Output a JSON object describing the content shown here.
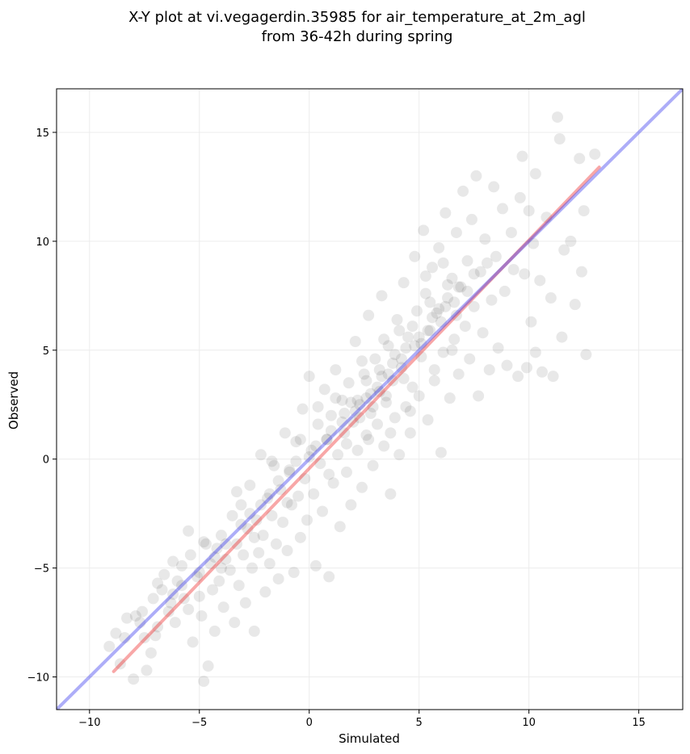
{
  "chart_data": {
    "type": "scatter",
    "title_line1": "X-Y plot at vi.vegagerdin.35985 for air_temperature_at_2m_agl",
    "title_line2": "from 36-42h during spring",
    "xlabel": "Simulated",
    "ylabel": "Observed",
    "xlim": [
      -11.5,
      17
    ],
    "ylim": [
      -11.5,
      17
    ],
    "xticks": [
      -10,
      -5,
      0,
      5,
      10,
      15
    ],
    "yticks": [
      -10,
      -5,
      0,
      5,
      10,
      15
    ],
    "grid": true,
    "point_color": "#000000",
    "point_alpha": 0.09,
    "regression_color": "#ee2222",
    "identity_color": "#3333ee",
    "regression_line": {
      "x": [
        -8.9,
        13.2
      ],
      "y": [
        -9.75,
        13.4
      ]
    },
    "identity_line": {
      "x": [
        -11.5,
        17
      ],
      "y": [
        -11.5,
        17
      ]
    },
    "series": [
      {
        "points": [
          [
            -9.1,
            -8.6
          ],
          [
            -8.8,
            -8.0
          ],
          [
            -8.6,
            -9.4
          ],
          [
            -8.4,
            -8.2
          ],
          [
            -8.3,
            -7.3
          ],
          [
            -8.0,
            -10.1
          ],
          [
            -7.9,
            -7.2
          ],
          [
            -7.6,
            -7.0
          ],
          [
            -7.5,
            -8.2
          ],
          [
            -7.4,
            -9.7
          ],
          [
            -7.2,
            -8.9
          ],
          [
            -7.1,
            -6.4
          ],
          [
            -6.9,
            -7.7
          ],
          [
            -6.7,
            -6.0
          ],
          [
            -6.6,
            -5.3
          ],
          [
            -6.4,
            -7.0
          ],
          [
            -6.2,
            -6.2
          ],
          [
            -6.1,
            -7.5
          ],
          [
            -6.0,
            -5.6
          ],
          [
            -5.8,
            -4.9
          ],
          [
            -5.7,
            -6.4
          ],
          [
            -5.5,
            -3.3
          ],
          [
            -5.4,
            -4.4
          ],
          [
            -5.3,
            -8.4
          ],
          [
            -5.1,
            -5.4
          ],
          [
            -5.0,
            -6.3
          ],
          [
            -4.9,
            -7.2
          ],
          [
            -4.8,
            -10.2
          ],
          [
            -4.7,
            -3.9
          ],
          [
            -4.6,
            -9.5
          ],
          [
            -4.5,
            -4.8
          ],
          [
            -4.4,
            -6.0
          ],
          [
            -4.3,
            -7.9
          ],
          [
            -4.2,
            -4.1
          ],
          [
            -4.1,
            -5.6
          ],
          [
            -4.0,
            -3.5
          ],
          [
            -3.9,
            -6.8
          ],
          [
            -3.8,
            -4.6
          ],
          [
            -3.6,
            -5.1
          ],
          [
            -3.5,
            -2.6
          ],
          [
            -3.4,
            -7.5
          ],
          [
            -3.3,
            -3.9
          ],
          [
            -3.2,
            -5.8
          ],
          [
            -3.1,
            -2.1
          ],
          [
            -3.0,
            -4.4
          ],
          [
            -2.9,
            -6.6
          ],
          [
            -2.8,
            -3.2
          ],
          [
            -2.7,
            -1.2
          ],
          [
            -2.6,
            -5.0
          ],
          [
            -2.5,
            -7.9
          ],
          [
            -2.4,
            -2.8
          ],
          [
            -2.3,
            -4.3
          ],
          [
            -2.2,
            0.2
          ],
          [
            -2.1,
            -3.5
          ],
          [
            -2.0,
            -6.1
          ],
          [
            -1.9,
            -1.8
          ],
          [
            -1.8,
            -4.8
          ],
          [
            -1.7,
            -2.6
          ],
          [
            -1.6,
            -0.3
          ],
          [
            -1.5,
            -3.9
          ],
          [
            -1.4,
            -5.5
          ],
          [
            -1.3,
            -1.4
          ],
          [
            -1.2,
            -2.9
          ],
          [
            -1.1,
            1.2
          ],
          [
            -1.0,
            -4.2
          ],
          [
            -0.9,
            -0.5
          ],
          [
            -0.8,
            -2.1
          ],
          [
            -0.7,
            -5.2
          ],
          [
            -0.6,
            0.8
          ],
          [
            -0.5,
            -1.7
          ],
          [
            -0.4,
            -3.6
          ],
          [
            -0.3,
            2.3
          ],
          [
            -0.2,
            -0.9
          ],
          [
            -0.1,
            -2.8
          ],
          [
            0.0,
            3.8
          ],
          [
            0.1,
            0.4
          ],
          [
            0.2,
            -1.6
          ],
          [
            0.3,
            -4.9
          ],
          [
            0.4,
            1.6
          ],
          [
            0.5,
            -0.2
          ],
          [
            0.6,
            -2.4
          ],
          [
            0.7,
            3.2
          ],
          [
            0.8,
            0.9
          ],
          [
            0.9,
            -5.4
          ],
          [
            1.0,
            2.0
          ],
          [
            1.1,
            -1.1
          ],
          [
            1.2,
            4.1
          ],
          [
            1.3,
            0.2
          ],
          [
            1.4,
            -3.1
          ],
          [
            1.5,
            2.7
          ],
          [
            1.6,
            1.2
          ],
          [
            1.7,
            -0.6
          ],
          [
            1.8,
            3.5
          ],
          [
            1.9,
            -2.1
          ],
          [
            2.0,
            1.7
          ],
          [
            2.1,
            5.4
          ],
          [
            2.2,
            0.4
          ],
          [
            2.3,
            2.5
          ],
          [
            2.4,
            -1.3
          ],
          [
            2.5,
            3.9
          ],
          [
            2.6,
            1.1
          ],
          [
            2.7,
            6.6
          ],
          [
            2.8,
            2.1
          ],
          [
            2.9,
            -0.3
          ],
          [
            3.0,
            4.6
          ],
          [
            3.1,
            1.6
          ],
          [
            3.2,
            3.1
          ],
          [
            3.3,
            7.5
          ],
          [
            3.4,
            0.6
          ],
          [
            3.5,
            2.6
          ],
          [
            3.6,
            5.2
          ],
          [
            3.7,
            -1.6
          ],
          [
            3.8,
            3.6
          ],
          [
            3.9,
            1.9
          ],
          [
            4.0,
            6.4
          ],
          [
            4.1,
            0.2
          ],
          [
            4.2,
            4.2
          ],
          [
            4.3,
            8.1
          ],
          [
            4.4,
            2.4
          ],
          [
            4.5,
            5.6
          ],
          [
            4.6,
            1.2
          ],
          [
            4.7,
            3.3
          ],
          [
            4.8,
            9.3
          ],
          [
            4.9,
            6.8
          ],
          [
            5.0,
            2.9
          ],
          [
            5.1,
            4.7
          ],
          [
            5.2,
            10.5
          ],
          [
            5.3,
            7.6
          ],
          [
            5.4,
            1.8
          ],
          [
            5.5,
            5.9
          ],
          [
            5.6,
            8.8
          ],
          [
            5.7,
            3.6
          ],
          [
            5.8,
            6.7
          ],
          [
            5.9,
            9.7
          ],
          [
            6.0,
            0.3
          ],
          [
            6.1,
            4.9
          ],
          [
            6.2,
            11.3
          ],
          [
            6.3,
            7.4
          ],
          [
            6.4,
            2.8
          ],
          [
            6.5,
            8.3
          ],
          [
            6.6,
            5.5
          ],
          [
            6.7,
            10.4
          ],
          [
            6.8,
            3.9
          ],
          [
            6.9,
            7.9
          ],
          [
            7.0,
            12.3
          ],
          [
            7.1,
            6.1
          ],
          [
            7.2,
            9.1
          ],
          [
            7.3,
            4.6
          ],
          [
            7.4,
            11.0
          ],
          [
            7.5,
            7.0
          ],
          [
            7.6,
            13.0
          ],
          [
            7.7,
            2.9
          ],
          [
            7.8,
            8.6
          ],
          [
            7.9,
            5.8
          ],
          [
            8.0,
            10.1
          ],
          [
            8.2,
            4.1
          ],
          [
            8.3,
            7.3
          ],
          [
            8.4,
            12.5
          ],
          [
            8.5,
            9.3
          ],
          [
            8.6,
            5.1
          ],
          [
            8.8,
            11.5
          ],
          [
            8.9,
            7.7
          ],
          [
            9.0,
            4.3
          ],
          [
            9.2,
            10.4
          ],
          [
            9.3,
            8.7
          ],
          [
            9.5,
            3.8
          ],
          [
            9.6,
            12.0
          ],
          [
            9.7,
            13.9
          ],
          [
            9.8,
            8.5
          ],
          [
            9.9,
            4.2
          ],
          [
            10.0,
            11.4
          ],
          [
            10.1,
            6.3
          ],
          [
            10.2,
            9.9
          ],
          [
            10.3,
            13.1
          ],
          [
            10.3,
            4.9
          ],
          [
            10.5,
            8.2
          ],
          [
            10.6,
            4.0
          ],
          [
            10.8,
            11.1
          ],
          [
            11.0,
            7.4
          ],
          [
            11.1,
            3.8
          ],
          [
            11.3,
            15.7
          ],
          [
            11.4,
            14.7
          ],
          [
            11.5,
            5.6
          ],
          [
            11.6,
            9.6
          ],
          [
            11.9,
            10.0
          ],
          [
            12.1,
            7.1
          ],
          [
            12.3,
            13.8
          ],
          [
            12.4,
            8.6
          ],
          [
            12.5,
            11.4
          ],
          [
            12.6,
            4.8
          ],
          [
            13.0,
            14.0
          ],
          [
            -6.9,
            -5.7
          ],
          [
            -5.8,
            -5.8
          ],
          [
            -4.3,
            -4.5
          ],
          [
            -3.1,
            -3.0
          ],
          [
            -2.2,
            -2.1
          ],
          [
            -1.4,
            -1.0
          ],
          [
            -0.6,
            -0.1
          ],
          [
            0.3,
            0.6
          ],
          [
            1.0,
            1.3
          ],
          [
            1.6,
            2.1
          ],
          [
            2.2,
            2.7
          ],
          [
            2.8,
            3.0
          ],
          [
            3.3,
            3.8
          ],
          [
            3.8,
            4.4
          ],
          [
            4.4,
            5.1
          ],
          [
            5.0,
            5.6
          ],
          [
            5.6,
            6.5
          ],
          [
            6.2,
            7.0
          ],
          [
            6.8,
            7.9
          ],
          [
            7.5,
            8.5
          ],
          [
            8.1,
            9.0
          ],
          [
            -7.7,
            -7.5
          ],
          [
            -6.3,
            -6.6
          ],
          [
            -5.0,
            -5.2
          ],
          [
            -3.8,
            -3.9
          ],
          [
            -2.7,
            -2.5
          ],
          [
            -1.8,
            -1.6
          ],
          [
            -0.9,
            -0.6
          ],
          [
            0.0,
            0.1
          ],
          [
            0.8,
            0.9
          ],
          [
            1.5,
            1.7
          ],
          [
            2.1,
            2.2
          ],
          [
            2.6,
            2.8
          ],
          [
            3.1,
            3.3
          ],
          [
            3.6,
            3.9
          ],
          [
            4.2,
            4.6
          ],
          [
            4.8,
            5.2
          ],
          [
            5.4,
            5.9
          ],
          [
            6.0,
            6.3
          ],
          [
            6.6,
            7.2
          ],
          [
            7.2,
            7.7
          ],
          [
            1.9,
            2.6
          ],
          [
            2.3,
            1.9
          ],
          [
            2.6,
            3.6
          ],
          [
            2.9,
            2.4
          ],
          [
            3.2,
            4.1
          ],
          [
            3.5,
            2.9
          ],
          [
            3.9,
            4.8
          ],
          [
            4.3,
            3.7
          ],
          [
            4.7,
            6.1
          ],
          [
            5.1,
            5.3
          ],
          [
            5.5,
            7.2
          ],
          [
            5.9,
            6.9
          ],
          [
            6.3,
            8.0
          ],
          [
            6.7,
            6.6
          ],
          [
            1.2,
            2.8
          ],
          [
            1.7,
            0.7
          ],
          [
            2.4,
            4.5
          ],
          [
            2.7,
            0.9
          ],
          [
            3.4,
            5.5
          ],
          [
            3.7,
            1.2
          ],
          [
            4.1,
            5.9
          ],
          [
            4.6,
            2.2
          ],
          [
            5.3,
            8.4
          ],
          [
            5.7,
            4.1
          ],
          [
            6.1,
            9.0
          ],
          [
            6.5,
            5.0
          ],
          [
            0.4,
            2.4
          ],
          [
            0.9,
            -0.7
          ],
          [
            -0.4,
            0.9
          ],
          [
            -1.0,
            -2.0
          ],
          [
            -1.7,
            -0.1
          ],
          [
            -2.5,
            -3.6
          ],
          [
            -3.3,
            -1.5
          ],
          [
            -4.0,
            -5.0
          ],
          [
            -4.8,
            -3.8
          ],
          [
            -5.5,
            -6.9
          ],
          [
            -6.2,
            -4.7
          ],
          [
            -7.0,
            -8.1
          ]
        ]
      }
    ]
  }
}
